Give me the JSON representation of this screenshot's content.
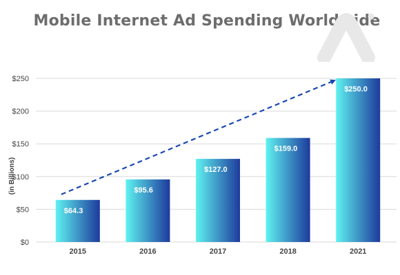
{
  "chart_data": {
    "type": "bar",
    "title": "Mobile Internet Ad Spending Worldwide",
    "ylabel": "(in Billions)",
    "xlabel": "",
    "categories": [
      "2015",
      "2016",
      "2017",
      "2018",
      "2021"
    ],
    "values": [
      64.3,
      95.6,
      127.0,
      159.0,
      250.0
    ],
    "value_labels": [
      "$64.3",
      "$95.6",
      "$127.0",
      "$159.0",
      "$250.0"
    ],
    "ylim": [
      0,
      250
    ],
    "yticks": [
      0,
      50,
      100,
      150,
      200,
      250
    ],
    "ytick_labels": [
      "$0",
      "$50",
      "$100",
      "$150",
      "$200",
      "$250"
    ],
    "grid": true,
    "legend": "none",
    "trend_arrow": true,
    "colors": {
      "bar_light": "#5ff2f0",
      "bar_dark": "#1d3a9c",
      "arrow": "#1a47b3",
      "grid": "#d9d9d9",
      "title": "#6d6d6d"
    }
  }
}
